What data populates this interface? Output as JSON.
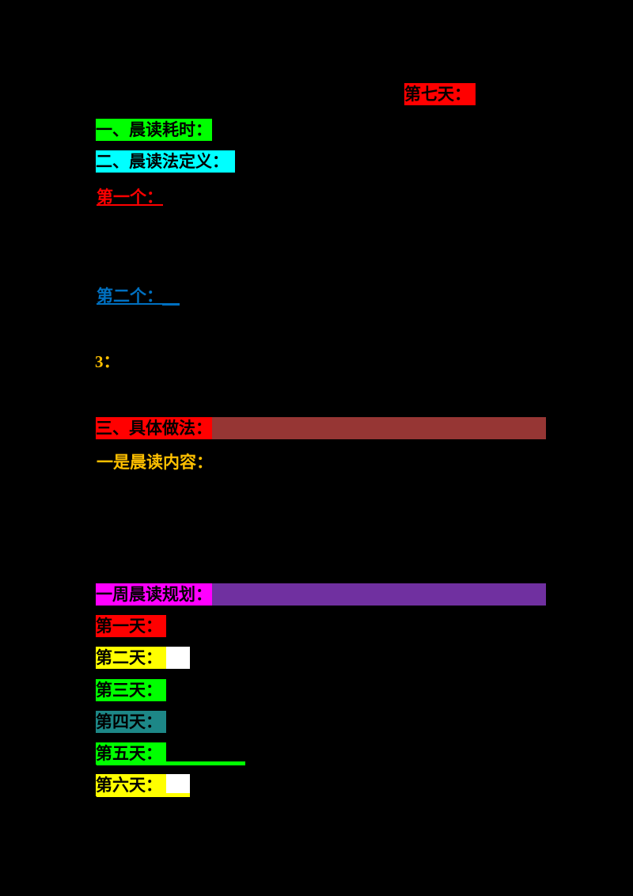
{
  "document": {
    "background": "#000000",
    "heading": {
      "label": "第七天：",
      "highlight": "#FF0000",
      "text_color": "#000000"
    },
    "sections": [
      {
        "label": "一、晨读耗时：",
        "highlight": "#00FF00"
      },
      {
        "label": "二、晨读法定义：",
        "highlight": "#00FFFF"
      },
      {
        "label": "三、具体做法：",
        "highlight": "#FF0000",
        "trailing_bar_color": "#963634"
      },
      {
        "label": "一周晨读规划：",
        "highlight": "#FF00FF",
        "trailing_bar_color": "#7030A0"
      }
    ],
    "notes": [
      {
        "label": "第一个：",
        "color": "#FF0000"
      },
      {
        "label": "第二个：",
        "color": "#0070C0"
      },
      {
        "label": "3：",
        "color": "#FFC000"
      },
      {
        "label": "一是晨读内容：",
        "color": "#FFC000"
      }
    ],
    "week_plan": [
      {
        "label": "第一天：",
        "highlight": "#FF0000"
      },
      {
        "label": "第二天：",
        "highlight": "#FFFF00",
        "tail_highlight": "#FFFFFF"
      },
      {
        "label": "第三天：",
        "highlight": "#00FF00"
      },
      {
        "label": "第四天：",
        "highlight": "#1D8787"
      },
      {
        "label": "第五天：",
        "highlight": "#00FF00",
        "underline_color": "#00FF00"
      },
      {
        "label": "第六天：",
        "highlight": "#FFFF00",
        "tail_highlight": "#FFFFFF",
        "underline_color": "#FFFF00"
      }
    ]
  }
}
